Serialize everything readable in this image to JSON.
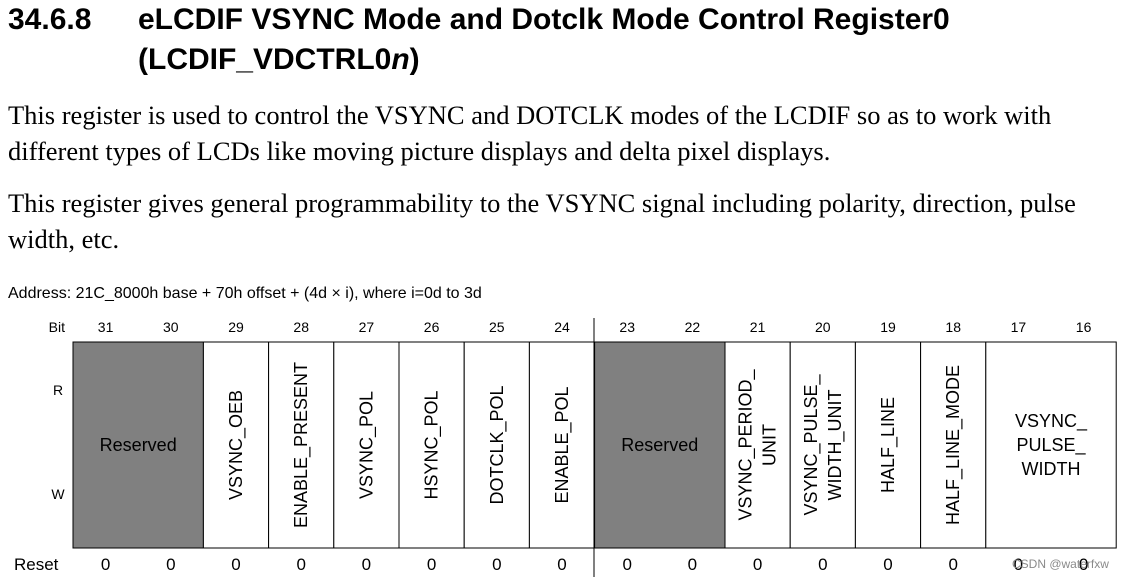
{
  "section": {
    "number": "34.6.8",
    "title_line1": "eLCDIF VSYNC Mode and Dotclk Mode Control Register0",
    "title_line2_prefix": "(LCDIF_VDCTRL0",
    "title_line2_italic": "n",
    "title_line2_suffix": ")"
  },
  "paragraphs": [
    "This register is used to control the VSYNC and DOTCLK modes of the LCDIF so as to work with different types of LCDs like moving picture displays and delta pixel displays.",
    "This register gives general programmability to the VSYNC signal including polarity, direction, pulse width, etc."
  ],
  "address": "Address: 21C_8000h base + 70h offset + (4d × i), where i=0d to 3d",
  "register": {
    "bit_label": "Bit",
    "read_label": "R",
    "write_label": "W",
    "reset_label": "Reset",
    "bits": [
      "31",
      "30",
      "29",
      "28",
      "27",
      "26",
      "25",
      "24",
      "23",
      "22",
      "21",
      "20",
      "19",
      "18",
      "17",
      "16"
    ],
    "reset_values": [
      "0",
      "0",
      "0",
      "0",
      "0",
      "0",
      "0",
      "0",
      "0",
      "0",
      "0",
      "0",
      "0",
      "0",
      "0",
      "0"
    ],
    "fields": [
      {
        "name": "Reserved",
        "span": 2,
        "reserved": true,
        "lines": [
          "Reserved"
        ]
      },
      {
        "name": "VSYNC_OEB",
        "span": 1,
        "reserved": false,
        "lines": [
          "VSYNC_OEB"
        ]
      },
      {
        "name": "ENABLE_PRESENT",
        "span": 1,
        "reserved": false,
        "lines": [
          "ENABLE_PRESENT"
        ]
      },
      {
        "name": "VSYNC_POL",
        "span": 1,
        "reserved": false,
        "lines": [
          "VSYNC_POL"
        ]
      },
      {
        "name": "HSYNC_POL",
        "span": 1,
        "reserved": false,
        "lines": [
          "HSYNC_POL"
        ]
      },
      {
        "name": "DOTCLK_POL",
        "span": 1,
        "reserved": false,
        "lines": [
          "DOTCLK_POL"
        ]
      },
      {
        "name": "ENABLE_POL",
        "span": 1,
        "reserved": false,
        "lines": [
          "ENABLE_POL"
        ]
      },
      {
        "name": "Reserved",
        "span": 2,
        "reserved": true,
        "lines": [
          "Reserved"
        ]
      },
      {
        "name": "VSYNC_PERIOD_UNIT",
        "span": 1,
        "reserved": false,
        "lines": [
          "VSYNC_PERIOD_",
          "UNIT"
        ]
      },
      {
        "name": "VSYNC_PULSE_WIDTH_UNIT",
        "span": 1,
        "reserved": false,
        "lines": [
          "VSYNC_PULSE_",
          "WIDTH_UNIT"
        ]
      },
      {
        "name": "HALF_LINE",
        "span": 1,
        "reserved": false,
        "lines": [
          "HALF_LINE"
        ]
      },
      {
        "name": "HALF_LINE_MODE",
        "span": 1,
        "reserved": false,
        "lines": [
          "HALF_LINE_MODE"
        ]
      },
      {
        "name": "VSYNC_PULSE_WIDTH",
        "span": 2,
        "reserved": false,
        "lines": [
          "VSYNC_",
          "PULSE_",
          "WIDTH"
        ]
      }
    ]
  },
  "watermark": "CSDN @waterfxw",
  "colors": {
    "reserved_fill": "#808080",
    "border": "#000000"
  }
}
